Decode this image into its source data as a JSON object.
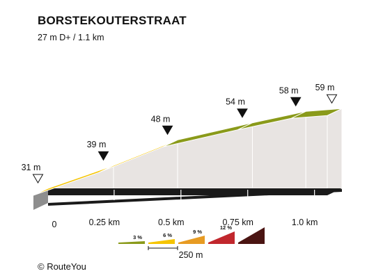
{
  "header": {
    "title": "BORSTEKOUTERSTRAAT",
    "subtitle": "27 m D+ / 1.1 km"
  },
  "footer": {
    "credit": "© RouteYou"
  },
  "colors": {
    "gradient_0_3": "#8a9a1a",
    "gradient_3_6": "#f5c400",
    "gradient_6_9": "#e79b23",
    "gradient_9_12": "#c1272d",
    "gradient_12_plus": "#4a1412",
    "side": "#e8e4e2",
    "base": "#1a1a1a",
    "base_side": "#8e8e8e"
  },
  "chart_data": {
    "type": "area",
    "title": "BORSTEKOUTERSTRAAT",
    "subtitle": "27 m D+ / 1.1 km",
    "xlabel": "",
    "ylabel": "",
    "x_unit": "km",
    "y_unit": "m",
    "xlim": [
      0,
      1.1
    ],
    "ylim": [
      31,
      59
    ],
    "x_ticks": [
      {
        "value": 0,
        "label": "0"
      },
      {
        "value": 0.25,
        "label": "0.25 km"
      },
      {
        "value": 0.5,
        "label": "0.5 km"
      },
      {
        "value": 0.75,
        "label": "0.75 km"
      },
      {
        "value": 1.0,
        "label": "1.0 km"
      }
    ],
    "segments": [
      {
        "x0": 0.0,
        "x1": 0.245,
        "e0": 31,
        "e1": 39,
        "gradient_class": "3-6 %"
      },
      {
        "x0": 0.245,
        "x1": 0.485,
        "e0": 39,
        "e1": 48,
        "gradient_class": "3-6 %"
      },
      {
        "x0": 0.485,
        "x1": 0.765,
        "e0": 48,
        "e1": 54,
        "gradient_class": "0-3 %"
      },
      {
        "x0": 0.765,
        "x1": 0.965,
        "e0": 54,
        "e1": 58,
        "gradient_class": "0-3 %"
      },
      {
        "x0": 0.965,
        "x1": 1.1,
        "e0": 58,
        "e1": 59,
        "gradient_class": "0-3 %"
      }
    ],
    "elevation_markers": [
      {
        "x": 0.0,
        "label": "31 m",
        "marker": "open"
      },
      {
        "x": 0.245,
        "label": "39 m",
        "marker": "filled"
      },
      {
        "x": 0.485,
        "label": "48 m",
        "marker": "filled"
      },
      {
        "x": 0.765,
        "label": "54 m",
        "marker": "filled"
      },
      {
        "x": 0.965,
        "label": "58 m",
        "marker": "filled"
      },
      {
        "x": 1.1,
        "label": "59 m",
        "marker": "open"
      }
    ],
    "legend": {
      "scale_label": "250 m",
      "items": [
        {
          "label": "3 %",
          "class": "0-3 %"
        },
        {
          "label": "6 %",
          "class": "3-6 %"
        },
        {
          "label": "9 %",
          "class": "6-9 %"
        },
        {
          "label": "12 %",
          "class": "9-12 %"
        },
        {
          "label": "",
          "class": "12 %+"
        }
      ]
    }
  }
}
